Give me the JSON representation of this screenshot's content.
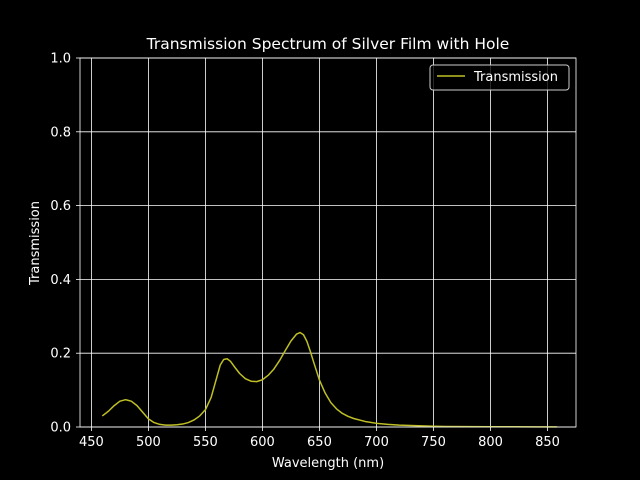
{
  "chart_data": {
    "type": "line",
    "title": "Transmission Spectrum of Silver Film with Hole",
    "xlabel": "Wavelength (nm)",
    "ylabel": "Transmission",
    "xlim": [
      440,
      875
    ],
    "ylim": [
      0.0,
      1.0
    ],
    "xticks": [
      450,
      500,
      550,
      600,
      650,
      700,
      750,
      800,
      850
    ],
    "xtick_labels": [
      "450",
      "500",
      "550",
      "600",
      "650",
      "700",
      "750",
      "800",
      "850"
    ],
    "yticks": [
      0.0,
      0.2,
      0.4,
      0.6,
      0.8,
      1.0
    ],
    "ytick_labels": [
      "0.0",
      "0.2",
      "0.4",
      "0.6",
      "0.8",
      "1.0"
    ],
    "grid": true,
    "legend_position": "upper right",
    "colors": {
      "background": "#000000",
      "foreground": "#ffffff",
      "series": "#bfbf25"
    },
    "series": [
      {
        "name": "Transmission",
        "x": [
          460,
          465,
          470,
          475,
          480,
          485,
          490,
          495,
          500,
          505,
          510,
          515,
          520,
          525,
          530,
          535,
          540,
          545,
          550,
          555,
          560,
          563,
          566,
          569,
          572,
          575,
          580,
          585,
          590,
          595,
          600,
          605,
          610,
          615,
          620,
          625,
          630,
          633,
          636,
          639,
          642,
          645,
          650,
          655,
          660,
          665,
          670,
          675,
          680,
          690,
          700,
          710,
          720,
          730,
          740,
          750,
          760,
          780,
          800,
          820,
          840,
          858
        ],
        "values": [
          0.031,
          0.043,
          0.058,
          0.07,
          0.074,
          0.07,
          0.058,
          0.04,
          0.022,
          0.012,
          0.007,
          0.005,
          0.005,
          0.006,
          0.008,
          0.012,
          0.019,
          0.03,
          0.047,
          0.08,
          0.135,
          0.168,
          0.183,
          0.185,
          0.178,
          0.165,
          0.145,
          0.131,
          0.124,
          0.123,
          0.128,
          0.14,
          0.157,
          0.18,
          0.207,
          0.233,
          0.252,
          0.256,
          0.25,
          0.232,
          0.205,
          0.175,
          0.127,
          0.092,
          0.066,
          0.049,
          0.037,
          0.029,
          0.023,
          0.015,
          0.01,
          0.007,
          0.005,
          0.004,
          0.003,
          0.002,
          0.0015,
          0.001,
          0.0008,
          0.0006,
          0.0005,
          0.0004
        ]
      }
    ]
  }
}
